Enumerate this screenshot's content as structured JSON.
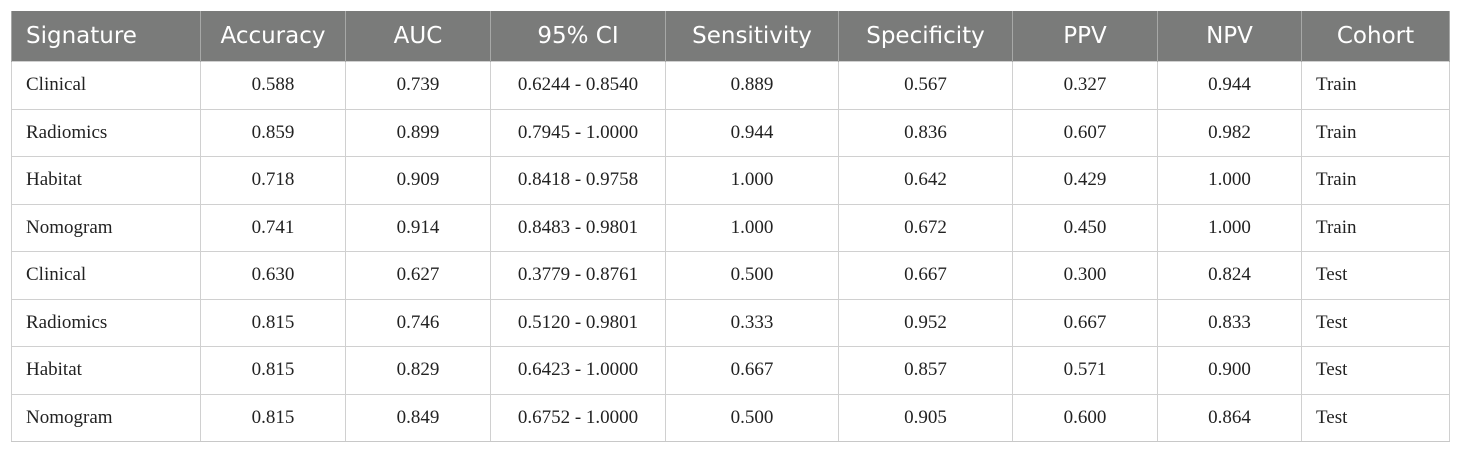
{
  "table": {
    "headers": [
      "Signature",
      "Accuracy",
      "AUC",
      "95% CI",
      "Sensitivity",
      "Specificity",
      "PPV",
      "NPV",
      "Cohort"
    ],
    "rows": [
      [
        "Clinical",
        "0.588",
        "0.739",
        "0.6244 - 0.8540",
        "0.889",
        "0.567",
        "0.327",
        "0.944",
        "Train"
      ],
      [
        "Radiomics",
        "0.859",
        "0.899",
        "0.7945 - 1.0000",
        "0.944",
        "0.836",
        "0.607",
        "0.982",
        "Train"
      ],
      [
        "Habitat",
        "0.718",
        "0.909",
        "0.8418 - 0.9758",
        "1.000",
        "0.642",
        "0.429",
        "1.000",
        "Train"
      ],
      [
        "Nomogram",
        "0.741",
        "0.914",
        "0.8483 - 0.9801",
        "1.000",
        "0.672",
        "0.450",
        "1.000",
        "Train"
      ],
      [
        "Clinical",
        "0.630",
        "0.627",
        "0.3779 - 0.8761",
        "0.500",
        "0.667",
        "0.300",
        "0.824",
        "Test"
      ],
      [
        "Radiomics",
        "0.815",
        "0.746",
        "0.5120 - 0.9801",
        "0.333",
        "0.952",
        "0.667",
        "0.833",
        "Test"
      ],
      [
        "Habitat",
        "0.815",
        "0.829",
        "0.6423 - 1.0000",
        "0.667",
        "0.857",
        "0.571",
        "0.900",
        "Test"
      ],
      [
        "Nomogram",
        "0.815",
        "0.849",
        "0.6752 - 1.0000",
        "0.500",
        "0.905",
        "0.600",
        "0.864",
        "Test"
      ]
    ]
  },
  "colors": {
    "header_background": "#7a7b7a",
    "header_text": "#ffffff",
    "cell_border": "#d0d0d0",
    "cell_text": "#222222"
  }
}
